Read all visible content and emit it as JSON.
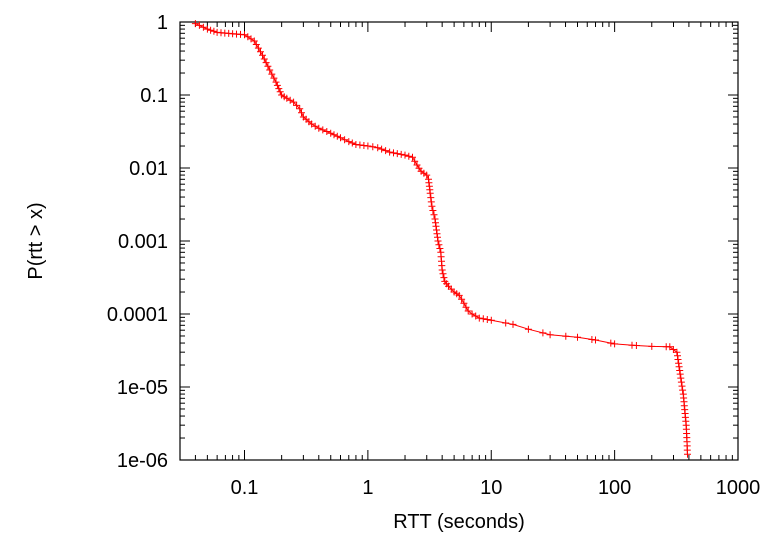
{
  "chart_data": {
    "type": "line",
    "xlabel": "RTT (seconds)",
    "ylabel": "P(rtt > x)",
    "xscale": "log",
    "yscale": "log",
    "xlim": [
      0.03,
      1000
    ],
    "ylim": [
      1e-06,
      1
    ],
    "grid": false,
    "legend": "none",
    "xticks": [
      {
        "value": 0.1,
        "label": "0.1"
      },
      {
        "value": 1,
        "label": "1"
      },
      {
        "value": 10,
        "label": "10"
      },
      {
        "value": 100,
        "label": "100"
      },
      {
        "value": 1000,
        "label": "1000"
      }
    ],
    "yticks": [
      {
        "value": 1,
        "label": "1"
      },
      {
        "value": 0.1,
        "label": "0.1"
      },
      {
        "value": 0.01,
        "label": "0.01"
      },
      {
        "value": 0.001,
        "label": "0.001"
      },
      {
        "value": 0.0001,
        "label": "0.0001"
      },
      {
        "value": 1e-05,
        "label": "1e-05"
      },
      {
        "value": 1e-06,
        "label": "1e-06"
      }
    ],
    "series": [
      {
        "color": "#ff0000",
        "marker": "plus",
        "points": [
          [
            0.04,
            0.95
          ],
          [
            0.05,
            0.8
          ],
          [
            0.06,
            0.72
          ],
          [
            0.08,
            0.69
          ],
          [
            0.1,
            0.67
          ],
          [
            0.12,
            0.55
          ],
          [
            0.14,
            0.35
          ],
          [
            0.16,
            0.22
          ],
          [
            0.18,
            0.15
          ],
          [
            0.2,
            0.1
          ],
          [
            0.22,
            0.09
          ],
          [
            0.25,
            0.08
          ],
          [
            0.28,
            0.065
          ],
          [
            0.3,
            0.05
          ],
          [
            0.35,
            0.04
          ],
          [
            0.4,
            0.035
          ],
          [
            0.5,
            0.03
          ],
          [
            0.6,
            0.026
          ],
          [
            0.7,
            0.023
          ],
          [
            0.8,
            0.021
          ],
          [
            1.0,
            0.02
          ],
          [
            1.2,
            0.019
          ],
          [
            1.5,
            0.0165
          ],
          [
            2.0,
            0.015
          ],
          [
            2.3,
            0.014
          ],
          [
            2.5,
            0.011
          ],
          [
            2.7,
            0.009
          ],
          [
            3.0,
            0.008
          ],
          [
            3.1,
            0.007
          ],
          [
            3.2,
            0.0045
          ],
          [
            3.3,
            0.003
          ],
          [
            3.5,
            0.002
          ],
          [
            3.7,
            0.001
          ],
          [
            3.9,
            0.0007
          ],
          [
            4.0,
            0.0004
          ],
          [
            4.2,
            0.00028
          ],
          [
            4.5,
            0.00024
          ],
          [
            5.0,
            0.0002
          ],
          [
            5.5,
            0.00018
          ],
          [
            6.0,
            0.00014
          ],
          [
            6.5,
            0.00011
          ],
          [
            7.0,
            0.0001
          ],
          [
            8.0,
            8.8e-05
          ],
          [
            10,
            8.2e-05
          ],
          [
            15,
            7.2e-05
          ],
          [
            20,
            6.2e-05
          ],
          [
            30,
            5.2e-05
          ],
          [
            50,
            4.8e-05
          ],
          [
            70,
            4.4e-05
          ],
          [
            100,
            3.9e-05
          ],
          [
            150,
            3.7e-05
          ],
          [
            200,
            3.6e-05
          ],
          [
            280,
            3.55e-05
          ],
          [
            320,
            3e-05
          ],
          [
            340,
            1.5e-05
          ],
          [
            360,
            8e-06
          ],
          [
            380,
            3e-06
          ],
          [
            390,
            1.2e-06
          ]
        ]
      }
    ]
  }
}
